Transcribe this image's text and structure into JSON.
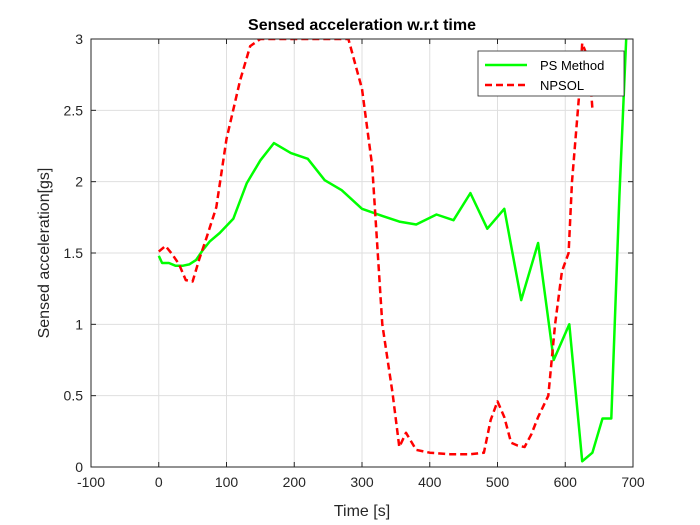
{
  "chart_data": {
    "type": "line",
    "title": "Sensed acceleration w.r.t time",
    "xlabel": "Time [s]",
    "ylabel": "Sensed acceleration[gs]",
    "xlim": [
      -100,
      700
    ],
    "ylim": [
      0,
      3
    ],
    "grid": true,
    "legend_position": "top-right",
    "x_ticks": [
      -100,
      0,
      100,
      200,
      300,
      400,
      500,
      600,
      700
    ],
    "x_tick_labels": [
      "-100",
      "0",
      "100",
      "200",
      "300",
      "400",
      "500",
      "600",
      "700"
    ],
    "y_ticks": [
      0,
      0.5,
      1,
      1.5,
      2,
      2.5,
      3
    ],
    "y_tick_labels": [
      "0",
      "0.5",
      "1",
      "1.5",
      "2",
      "2.5",
      "3"
    ],
    "series": [
      {
        "name": "PS Method",
        "color": "#00ff00",
        "line_style": "solid",
        "x": [
          0,
          5,
          15,
          25,
          35,
          45,
          55,
          65,
          75,
          90,
          110,
          130,
          150,
          170,
          195,
          220,
          245,
          270,
          300,
          330,
          355,
          380,
          410,
          435,
          460,
          485,
          510,
          535,
          560,
          583,
          606,
          625,
          640,
          655,
          668,
          680,
          690
        ],
        "y": [
          1.48,
          1.43,
          1.43,
          1.41,
          1.41,
          1.42,
          1.45,
          1.52,
          1.58,
          1.64,
          1.74,
          1.99,
          2.15,
          2.27,
          2.2,
          2.16,
          2.01,
          1.94,
          1.81,
          1.76,
          1.72,
          1.7,
          1.77,
          1.73,
          1.92,
          1.67,
          1.81,
          1.17,
          1.57,
          0.75,
          1.0,
          0.04,
          0.1,
          0.34,
          0.34,
          1.9,
          3.0
        ]
      },
      {
        "name": "NPSOL",
        "color": "#ff0000",
        "line_style": "dashed",
        "x": [
          0,
          10,
          20,
          30,
          40,
          50,
          60,
          70,
          85,
          100,
          120,
          135,
          150,
          170,
          200,
          230,
          260,
          280,
          300,
          315,
          330,
          345,
          355,
          365,
          380,
          400,
          430,
          460,
          480,
          490,
          500,
          510,
          520,
          530,
          540,
          550,
          560,
          575,
          585,
          595,
          605,
          610,
          620,
          625,
          635,
          640
        ],
        "y": [
          1.51,
          1.55,
          1.49,
          1.42,
          1.31,
          1.3,
          1.46,
          1.6,
          1.82,
          2.3,
          2.71,
          2.95,
          3.0,
          3.0,
          3.0,
          3.0,
          3.0,
          3.0,
          2.65,
          2.11,
          1.0,
          0.52,
          0.14,
          0.24,
          0.12,
          0.1,
          0.09,
          0.09,
          0.1,
          0.33,
          0.46,
          0.35,
          0.17,
          0.15,
          0.14,
          0.23,
          0.35,
          0.5,
          1.0,
          1.37,
          1.5,
          2.0,
          2.58,
          2.97,
          2.85,
          2.51
        ]
      }
    ]
  }
}
